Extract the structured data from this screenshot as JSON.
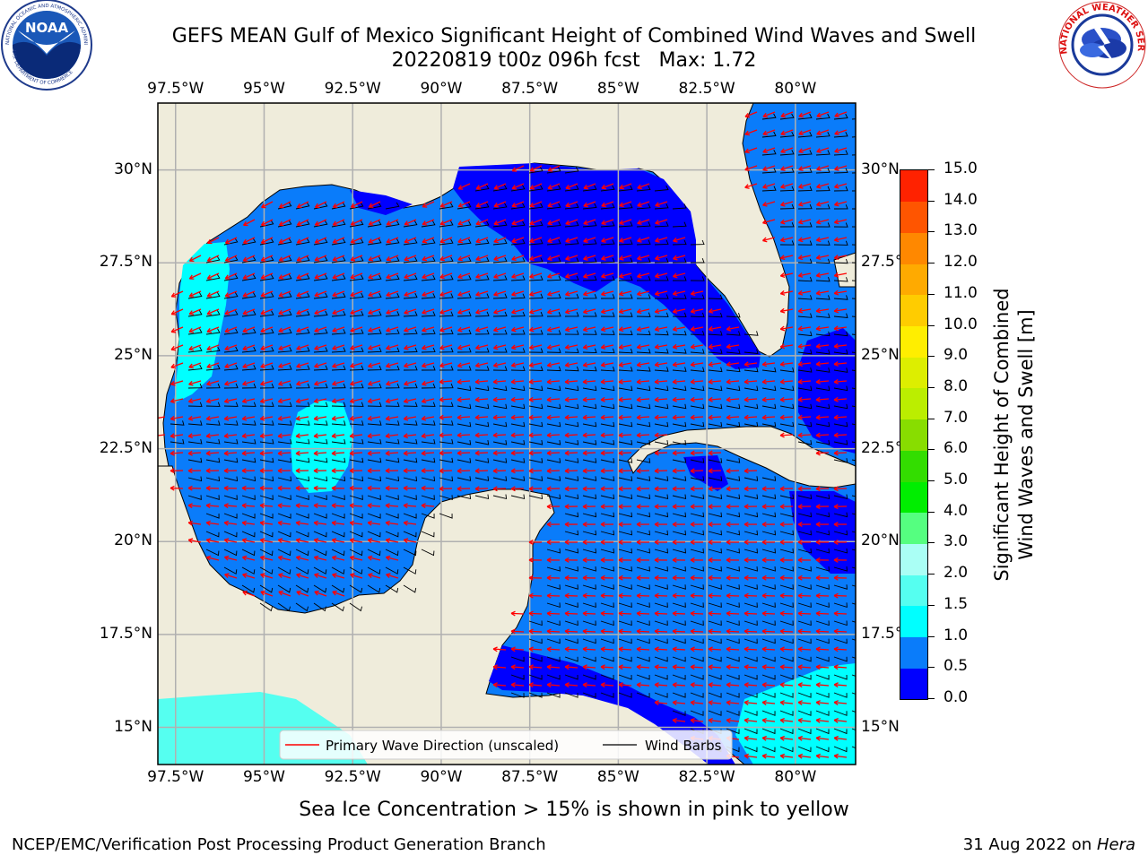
{
  "header": {
    "title_line1": "GEFS MEAN Gulf of Mexico Significant Height of Combined Wind Waves and Swell",
    "title_line2": "20220819 t00z 096h fcst   Max: 1.72"
  },
  "logos": {
    "noaa": {
      "text": "NOAA",
      "ring_text": "NATIONAL OCEANIC AND ATMOSPHERIC ADMINISTRATION",
      "ring_text_bottom": "U.S. DEPARTMENT OF COMMERCE"
    },
    "nws": {
      "ring_text": "NATIONAL WEATHER SERVICE"
    }
  },
  "map": {
    "lon_ticks": [
      "97.5°W",
      "95°W",
      "92.5°W",
      "90°W",
      "87.5°W",
      "85°W",
      "82.5°W",
      "80°W"
    ],
    "lat_ticks": [
      "30°N",
      "27.5°N",
      "25°N",
      "22.5°N",
      "20°N",
      "17.5°N",
      "15°N"
    ],
    "lon_values": [
      -97.5,
      -95,
      -92.5,
      -90,
      -87.5,
      -85,
      -82.5,
      -80
    ],
    "lat_values": [
      30,
      27.5,
      25,
      22.5,
      20,
      17.5,
      15
    ],
    "extent": {
      "lon_min": -98,
      "lon_max": -78.3,
      "lat_min": 14,
      "lat_max": 31.8
    },
    "legend": {
      "wave_label": "Primary Wave Direction (unscaled)",
      "barb_label": "Wind Barbs",
      "wave_color": "#ff0000",
      "barb_color": "#000000"
    },
    "colors": {
      "land": "#efecdb",
      "ocean_0_05": "#0000ff",
      "ocean_05_1": "#0a7cfa",
      "ocean_1_15": "#00ffff",
      "ocean_15_2": "#55fff0"
    }
  },
  "colorbar": {
    "label_line1": "Significant Height of Combined",
    "label_line2": "Wind Waves and Swell [m]",
    "ticks": [
      "0.0",
      "0.5",
      "1.0",
      "1.5",
      "2.0",
      "3.0",
      "4.0",
      "5.0",
      "6.0",
      "7.0",
      "8.0",
      "9.0",
      "10.0",
      "11.0",
      "12.0",
      "13.0",
      "14.0",
      "15.0"
    ],
    "colors": [
      "#0000ff",
      "#0a7cfa",
      "#00ffff",
      "#55fff0",
      "#aafff5",
      "#55ff80",
      "#00ee00",
      "#33dd00",
      "#88dd00",
      "#bbee00",
      "#ddee00",
      "#ffee00",
      "#ffcc00",
      "#ffaa00",
      "#ff8800",
      "#ff5500",
      "#ff2200",
      "#ff0000"
    ]
  },
  "caption": "Sea Ice Concentration > 15% is shown in pink to yellow",
  "footer": {
    "left": "NCEP/EMC/Verification Post Processing Product Generation Branch",
    "right_prefix": "31 Aug 2022 on ",
    "right_host": "Hera"
  }
}
